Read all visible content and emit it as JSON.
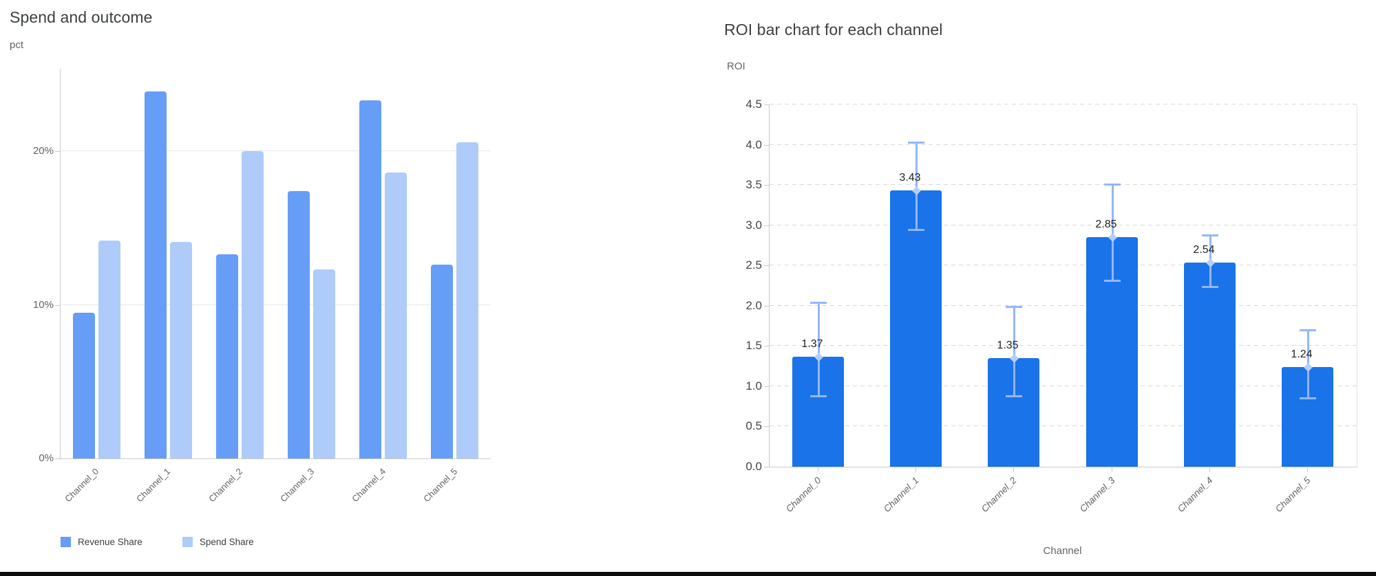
{
  "chart_data": [
    {
      "type": "bar",
      "title": "Spend and outcome",
      "ylabel": "pct",
      "xlabel": "",
      "categories": [
        "Channel_0",
        "Channel_1",
        "Channel_2",
        "Channel_3",
        "Channel_4",
        "Channel_5"
      ],
      "series": [
        {
          "name": "Revenue Share",
          "color": "#669df6",
          "values": [
            9.5,
            23.9,
            13.3,
            17.4,
            23.3,
            12.6
          ]
        },
        {
          "name": "Spend Share",
          "color": "#aecbfa",
          "values": [
            14.2,
            14.1,
            20.0,
            12.3,
            18.6,
            20.6
          ]
        }
      ],
      "value_unit": "%",
      "ylim": [
        0,
        25.4
      ],
      "yticks": [
        0,
        10,
        20
      ],
      "ytick_labels": [
        "0%",
        "10%",
        "20%"
      ],
      "grid": "solid",
      "legend_position": "bottom"
    },
    {
      "type": "bar",
      "title": "ROI bar chart for each channel",
      "ylabel": "ROI",
      "xlabel": "Channel",
      "categories": [
        "Channel_0",
        "Channel_1",
        "Channel_2",
        "Channel_3",
        "Channel_4",
        "Channel_5"
      ],
      "values": [
        1.37,
        3.43,
        1.35,
        2.85,
        2.54,
        1.24
      ],
      "value_labels": [
        "1.37",
        "3.43",
        "1.35",
        "2.85",
        "2.54",
        "1.24"
      ],
      "error_high": [
        2.04,
        4.03,
        1.99,
        3.51,
        2.88,
        1.7
      ],
      "error_low": [
        0.88,
        2.95,
        0.88,
        2.31,
        2.24,
        0.85
      ],
      "ylim": [
        0,
        4.5
      ],
      "yticks": [
        0.0,
        0.5,
        1.0,
        1.5,
        2.0,
        2.5,
        3.0,
        3.5,
        4.0,
        4.5
      ],
      "grid": "dashed",
      "bar_color": "#1a73e8",
      "error_color": "#94b7f7",
      "marker_color": "#b7cefb",
      "legend_position": "none"
    }
  ],
  "colors": {
    "title_text": "#3c4043",
    "axis_text": "#5f6368",
    "grid_solid": "#e6e6e6",
    "grid_dashed": "#d8d8d8",
    "axis_line": "#c8c8c8"
  }
}
